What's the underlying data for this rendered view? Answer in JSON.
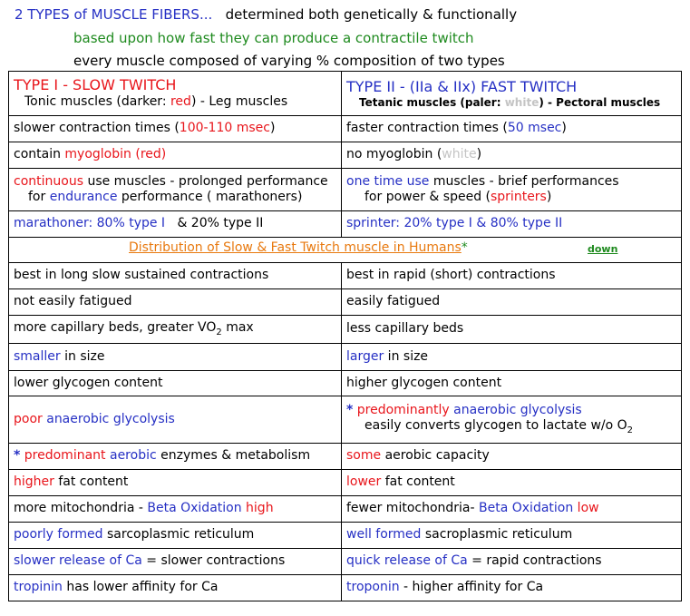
{
  "header": {
    "line1_title": "2 TYPES of MUSCLE FIBERS...",
    "line1_rest": "determined both genetically & functionally",
    "line2": "based upon how fast they can produce a contractile twitch",
    "line3": "every muscle composed of varying % composition of two types"
  },
  "type1": {
    "title": "TYPE I - SLOW TWITCH",
    "sub_a": "Tonic muscles (darker: ",
    "sub_color": "red",
    "sub_b": ") - Leg muscles"
  },
  "type2": {
    "title": "TYPE II - (IIa & IIx) FAST TWITCH",
    "sub_a": "Tetanic muscles (paler: ",
    "sub_color": "white",
    "sub_b": ") - Pectoral muscles"
  },
  "rows_top": {
    "contraction_left_a": "slower contraction times (",
    "contraction_left_val": "100-110 msec",
    "contraction_left_b": ")",
    "contraction_right_a": "faster contraction times (",
    "contraction_right_val": "50 msec",
    "contraction_right_b": ")",
    "myo_left_a": "contain ",
    "myo_left_word": "myoglobin",
    "myo_left_paren": " (red)",
    "myo_right_a": "no myoglobin (",
    "myo_right_word": "white",
    "myo_right_b": ")",
    "use_left_a": "continuous",
    "use_left_b": " use muscles - prolonged performance",
    "use_left_c": "for ",
    "use_left_d": "endurance",
    "use_left_e": " performance ( marathoners)",
    "use_right_a": "one time use",
    "use_right_b": " muscles - brief performances",
    "use_right_c": "for power & speed (",
    "use_right_d": "sprinters",
    "use_right_e": ")",
    "ratio_left_a": "marathoner: 80% type I",
    "ratio_left_b": "&  20% type II",
    "ratio_right_a": "sprinter: 20% type I  & ",
    "ratio_right_b": "80% type II"
  },
  "distribution": {
    "title": "Distribution of Slow & Fast Twitch muscle in Humans",
    "star": "*",
    "down": "down"
  },
  "rows_bottom": {
    "r1_left": "best in long slow sustained contractions",
    "r1_right": "best in rapid (short) contractions",
    "r2_left": "not easily fatigued",
    "r2_right": "easily fatigued",
    "r3_left_a": "more capillary beds, greater VO",
    "r3_left_sub": "2",
    "r3_left_b": " max",
    "r3_right": "less capillary beds",
    "r4_left_a": "smaller",
    "r4_left_b": " in size",
    "r4_right_a": "larger",
    "r4_right_b": " in size",
    "r5_left": "lower glycogen content",
    "r5_right": "higher glycogen content",
    "r6_left_a": "poor ",
    "r6_left_b": "anaerobic glycolysis",
    "r6_right_star": "*",
    "r6_right_a": " predominantly ",
    "r6_right_b": "anaerobic glycolysis",
    "r6_right_c": "easily converts glycogen to lactate  w/o O",
    "r6_right_sub": "2",
    "r7_left_star": "*",
    "r7_left_a": " predominant ",
    "r7_left_b": "aerobic",
    "r7_left_c": " enzymes & metabolism",
    "r7_right_a": "some",
    "r7_right_b": " aerobic capacity",
    "r8_left_a": "higher",
    "r8_left_b": " fat content",
    "r8_right_a": "lower",
    "r8_right_b": " fat content",
    "r9_left_a": "more mitochondria - ",
    "r9_left_b": "Beta Oxidation",
    "r9_left_c": " high",
    "r9_right_a": "fewer mitochondria- ",
    "r9_right_b": "Beta Oxidation",
    "r9_right_c": " low",
    "r10_left_a": "poorly formed",
    "r10_left_b": " sarcoplasmic reticulum",
    "r10_right_a": "well formed",
    "r10_right_b": " sacroplasmic reticulum",
    "r11_left_a": "slower release of Ca",
    "r11_left_b": " = slower contractions",
    "r11_right_a": "quick release of Ca",
    "r11_right_b": " = rapid contractions",
    "r12_left_a": "tropinin",
    "r12_left_b": " has lower affinity for Ca",
    "r12_right_a": "troponin",
    "r12_right_b": " - higher affinity for Ca"
  }
}
